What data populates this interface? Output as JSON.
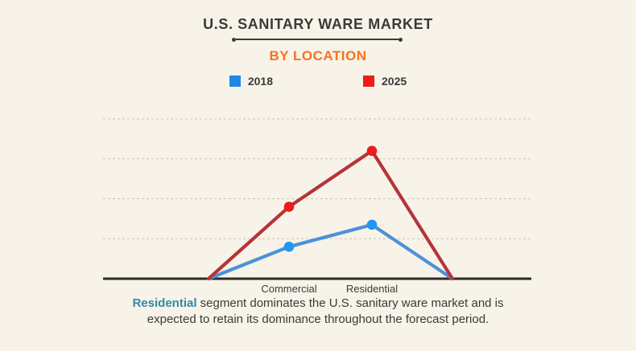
{
  "header": {
    "title": "U.S. SANITARY WARE MARKET",
    "subtitle": "BY LOCATION"
  },
  "legend": {
    "items": [
      {
        "label": "2018",
        "color": "#1e88e5"
      },
      {
        "label": "2025",
        "color": "#ed1c16"
      }
    ]
  },
  "chart_data": {
    "type": "line",
    "title": "U.S. SANITARY WARE MARKET",
    "subtitle": "BY LOCATION",
    "categories": [
      "",
      "Commercial",
      "Residential",
      ""
    ],
    "category_labels_shown": [
      "Commercial",
      "Residential"
    ],
    "series": [
      {
        "name": "2018",
        "values": [
          0,
          0.8,
          1.35,
          0
        ],
        "line_color": "#4a92da",
        "marker_color": "#2196f3",
        "markers_at_indices": [
          1,
          2
        ]
      },
      {
        "name": "2025",
        "values": [
          0,
          1.8,
          3.2,
          0
        ],
        "line_color": "#b5343c",
        "marker_color": "#ee1b1b",
        "markers_at_indices": [
          1,
          2
        ]
      }
    ],
    "xlabel": "",
    "ylabel": "",
    "ylim": [
      0,
      4.4
    ],
    "y_axis_labels_visible": false,
    "gridlines": {
      "values": [
        1,
        2,
        3,
        4
      ],
      "style": "dashed"
    },
    "legend_position": "top",
    "note": "No numeric y-axis labels shown; values are relative units read from gridlines (baseline = 0, one gridline per unit)."
  },
  "caption": {
    "highlight": "Residential",
    "line1_rest": " segment dominates the U.S. sanitary ware market and is",
    "line2": "expected to retain its dominance throughout the forecast period.",
    "highlight_color": "#2e8ba6"
  },
  "colors": {
    "background": "#f8f3e8",
    "text": "#3a3a3a",
    "accent_orange": "#f4731f",
    "axis": "#2d2925",
    "gridline": "#c9c4b6"
  }
}
